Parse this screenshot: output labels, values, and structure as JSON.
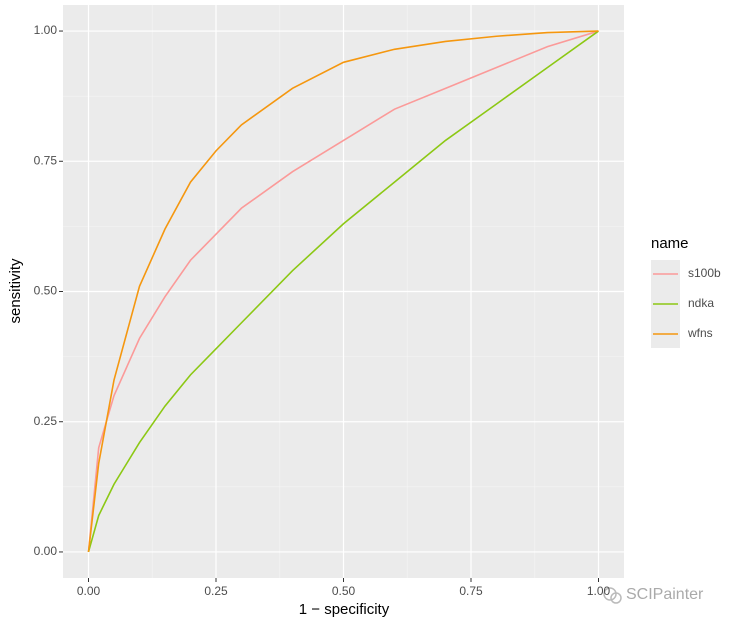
{
  "chart_data": {
    "type": "line",
    "x_label": "1 − specificity",
    "y_label": "sensitivity",
    "legend_title": "name",
    "legend_position": "right",
    "grid": true,
    "x": [
      0,
      0.02,
      0.05,
      0.1,
      0.15,
      0.2,
      0.25,
      0.3,
      0.4,
      0.5,
      0.6,
      0.7,
      0.8,
      0.9,
      1
    ],
    "series": [
      {
        "name": "s100b",
        "color": "#fb9a99",
        "values": [
          0,
          0.2,
          0.3,
          0.41,
          0.49,
          0.56,
          0.61,
          0.66,
          0.73,
          0.79,
          0.85,
          0.89,
          0.93,
          0.97,
          1
        ]
      },
      {
        "name": "ndka",
        "color": "#8cc814",
        "values": [
          0,
          0.07,
          0.13,
          0.21,
          0.28,
          0.34,
          0.39,
          0.44,
          0.54,
          0.63,
          0.71,
          0.79,
          0.86,
          0.93,
          1
        ]
      },
      {
        "name": "wfns",
        "color": "#f5970f",
        "values": [
          0,
          0.17,
          0.33,
          0.51,
          0.62,
          0.71,
          0.77,
          0.82,
          0.89,
          0.94,
          0.965,
          0.98,
          0.99,
          0.997,
          1
        ]
      }
    ],
    "xlim": [
      -0.05,
      1.05
    ],
    "ylim": [
      -0.05,
      1.05
    ],
    "xticks": [
      {
        "value": 0,
        "label": "0.00"
      },
      {
        "value": 0.25,
        "label": "0.25"
      },
      {
        "value": 0.5,
        "label": "0.50"
      },
      {
        "value": 0.75,
        "label": "0.75"
      },
      {
        "value": 1,
        "label": "1.00"
      }
    ],
    "yticks": [
      {
        "value": 0,
        "label": "0.00"
      },
      {
        "value": 0.25,
        "label": "0.25"
      },
      {
        "value": 0.5,
        "label": "0.50"
      },
      {
        "value": 0.75,
        "label": "0.75"
      },
      {
        "value": 1,
        "label": "1.00"
      }
    ]
  },
  "watermark": "SCIPainter"
}
